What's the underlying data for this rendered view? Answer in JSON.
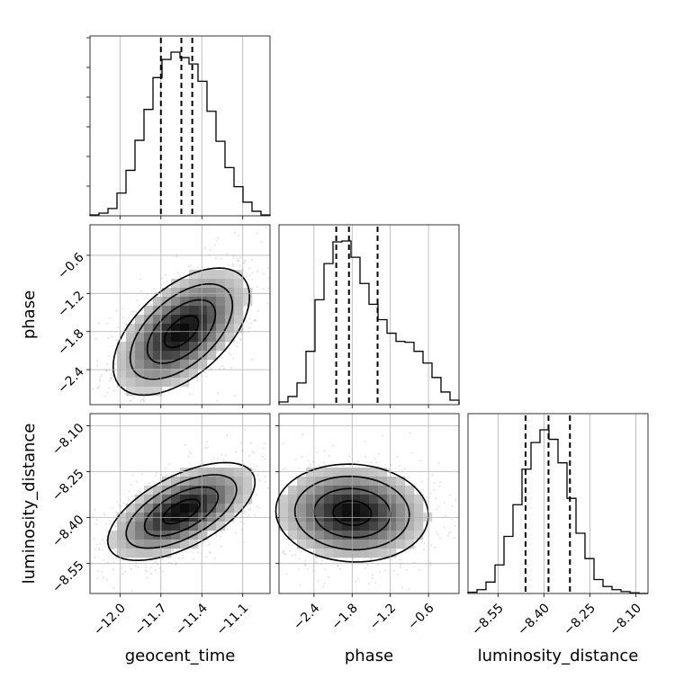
{
  "chart_data": {
    "type": "corner",
    "parameters": [
      "geocent_time",
      "phase",
      "luminosity_distance"
    ],
    "labels": {
      "geocent_time": "geocent_time",
      "phase": "phase",
      "luminosity_distance": "luminosity_distance"
    },
    "ranges": {
      "geocent_time": [
        -12.22,
        -10.9
      ],
      "phase": [
        -2.95,
        -0.12
      ],
      "luminosity_distance": [
        -8.648,
        -8.06
      ]
    },
    "ticks": {
      "geocent_time": [
        -12.0,
        -11.7,
        -11.4,
        -11.1
      ],
      "phase": [
        -2.4,
        -1.8,
        -1.2,
        -0.6
      ],
      "luminosity_distance": [
        -8.55,
        -8.4,
        -8.25,
        -8.1
      ]
    },
    "tick_labels": {
      "geocent_time": [
        "−12.0",
        "−11.7",
        "−11.4",
        "−11.1"
      ],
      "phase": [
        "−2.4",
        "−1.8",
        "−1.2",
        "−0.6"
      ],
      "luminosity_distance": [
        "−8.55",
        "−8.40",
        "−8.25",
        "−8.10"
      ]
    },
    "quantiles": {
      "geocent_time": [
        -11.47,
        -11.55,
        -11.7
      ],
      "phase": [
        -2.05,
        -1.85,
        -1.4
      ],
      "luminosity_distance": [
        -8.46,
        -8.385,
        -8.315
      ]
    },
    "histograms": {
      "geocent_time": {
        "bin_edges": [
          -12.22,
          -12.154,
          -12.088,
          -12.022,
          -11.956,
          -11.89,
          -11.824,
          -11.758,
          -11.692,
          -11.626,
          -11.56,
          -11.494,
          -11.428,
          -11.362,
          -11.296,
          -11.23,
          -11.164,
          -11.098,
          -11.032,
          -10.966,
          -10.9
        ],
        "counts": [
          1,
          3,
          8,
          25,
          50,
          83,
          117,
          152,
          172,
          180,
          174,
          167,
          148,
          115,
          82,
          53,
          32,
          15,
          5,
          1
        ]
      },
      "phase": {
        "bin_edges": [
          -2.95,
          -2.8085,
          -2.667,
          -2.5255,
          -2.384,
          -2.2425,
          -2.101,
          -1.9595,
          -1.818,
          -1.6765,
          -1.535,
          -1.3935,
          -1.252,
          -1.1105,
          -0.969,
          -0.8275,
          -0.686,
          -0.5445,
          -0.403,
          -0.2615,
          -0.12
        ],
        "counts": [
          6,
          18,
          48,
          118,
          232,
          312,
          360,
          362,
          326,
          268,
          222,
          188,
          158,
          140,
          138,
          118,
          92,
          60,
          28,
          10
        ]
      },
      "luminosity_distance": {
        "bin_edges": [
          -8.648,
          -8.6186,
          -8.5892,
          -8.5598,
          -8.5304,
          -8.501,
          -8.4716,
          -8.4422,
          -8.4128,
          -8.3834,
          -8.354,
          -8.3246,
          -8.2952,
          -8.2658,
          -8.2364,
          -8.207,
          -8.1776,
          -8.1482,
          -8.1188,
          -8.0894,
          -8.06
        ],
        "counts": [
          2,
          6,
          18,
          45,
          90,
          140,
          196,
          238,
          258,
          243,
          206,
          150,
          95,
          55,
          22,
          11,
          6,
          3,
          1,
          0
        ]
      }
    },
    "densities": {
      "geocent_time_vs_phase": {
        "mean": [
          -11.55,
          -1.8
        ],
        "sd": [
          0.25,
          0.5
        ],
        "corr": 0.55
      },
      "geocent_time_vs_luminosity_distance": {
        "mean": [
          -11.55,
          -8.38
        ],
        "sd": [
          0.27,
          0.08
        ],
        "corr": 0.6
      },
      "phase_vs_luminosity_distance": {
        "mean": [
          -1.8,
          -8.385
        ],
        "sd": [
          0.6,
          0.08
        ],
        "corr": -0.05
      }
    },
    "grid": true,
    "legend": "none"
  }
}
